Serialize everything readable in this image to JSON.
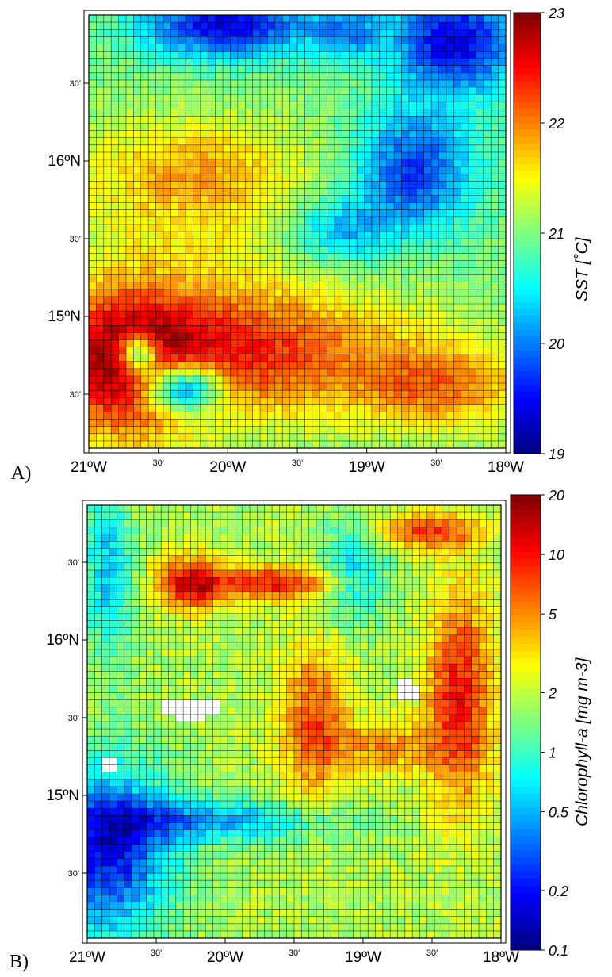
{
  "chart_data": [
    {
      "type": "heatmap",
      "panel_label": "A)",
      "colorbar_title": "SST [˚C]",
      "colorbar_ticks": [
        "23",
        "22",
        "21",
        "20",
        "19"
      ],
      "colorbar_range": [
        19,
        23
      ],
      "colorbar_scale": "linear",
      "x_ticks": [
        "21ºW",
        "30'",
        "20ºW",
        "30'",
        "19ºW",
        "30'",
        "18ºW"
      ],
      "y_ticks": [
        "30'",
        "16ºN",
        "30'",
        "15ºN",
        "30'"
      ],
      "x_range": [
        -21,
        -18
      ],
      "y_range": [
        14.25,
        16.95
      ],
      "grid": true,
      "colormap": "jet",
      "pattern": [
        "Cold water (19-20 C) along the northern edge, strongest near 20W-19.5W and 18.5W-18W",
        "Cold tongue (19.5-20.5 C) sweeping south along the east side from 18.5W to about 15.5N",
        "Warm water (22-23 C) across the south, from 21W to 19.2W and 15.3N to 14.3N",
        "Scattered cyan patches (20-20.5 C) near 20.5W-19.7W, 14.3-14.9N"
      ]
    },
    {
      "type": "heatmap",
      "panel_label": "B)",
      "colorbar_title": "Chlorophyll-a [mg m-3]",
      "colorbar_ticks": [
        "20",
        "10",
        "5",
        "2",
        "1",
        "0.5",
        "0.2",
        "0.1"
      ],
      "colorbar_range": [
        0.1,
        20
      ],
      "colorbar_scale": "log",
      "x_ticks": [
        "21ºW",
        "30'",
        "20ºW",
        "30'",
        "19ºW",
        "30'",
        "18ºW"
      ],
      "y_ticks": [
        "30'",
        "16ºN",
        "30'",
        "15ºN",
        "30'"
      ],
      "x_range": [
        -21,
        -18
      ],
      "y_range": [
        14.25,
        16.95
      ],
      "grid": true,
      "colormap": "jet",
      "pattern": [
        "High chlorophyll (10-20) filaments near 20.3W 16.6N and along an arc from 19.5W 16.6N to 18.8W 16.6N",
        "High chlorophyll (10-20) streaks along the east side, 18.5W-18W, 15.2N-16.9N",
        "Low chlorophyll (0.1-0.3) in the southwest band, 21W-20W, 14.3-15.2N",
        "White cells (no data) near 20.5W 15.8N, 18.6W 15.7N and 20.9W 15.2N"
      ]
    }
  ]
}
